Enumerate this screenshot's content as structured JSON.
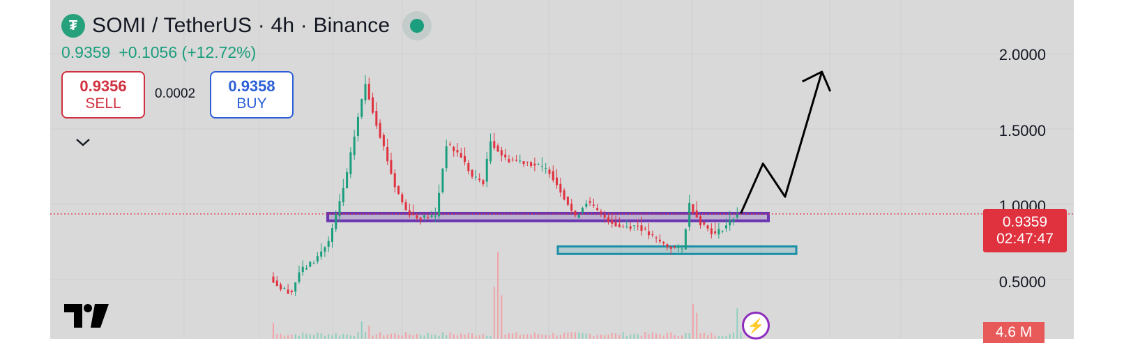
{
  "header": {
    "logo_glyph": "₮",
    "title": "SOMI / TetherUS · 4h · Binance",
    "last_price": "0.9359",
    "change": "+0.1056 (+12.72%)",
    "status_color": "#1a9e7d"
  },
  "trade": {
    "sell_price": "0.9356",
    "sell_label": "SELL",
    "spread": "0.0002",
    "buy_price": "0.9358",
    "buy_label": "BUY"
  },
  "price_tag": {
    "price": "0.9359",
    "countdown": "02:47:47"
  },
  "volume_tag": "4.6 M",
  "colors": {
    "up": "#1a9e7d",
    "down": "#e0313f",
    "resistance_zone": "#6a35b0",
    "support_zone": "#1b8fa6",
    "arrow": "#000000"
  },
  "chart_data": {
    "type": "candlestick",
    "y_ticks": [
      "2.0000",
      "1.5000",
      "1.0000",
      "0.5000"
    ],
    "y_tick_values": [
      2.0,
      1.5,
      1.0,
      0.5
    ],
    "current_price": 0.9359,
    "resistance_zone": {
      "low": 0.89,
      "high": 0.94
    },
    "support_zone": {
      "low": 0.67,
      "high": 0.72
    },
    "price_path": [
      {
        "i": 0,
        "p": 0.52
      },
      {
        "i": 3,
        "p": 0.44
      },
      {
        "i": 6,
        "p": 0.42
      },
      {
        "i": 8,
        "p": 0.55
      },
      {
        "i": 12,
        "p": 0.62
      },
      {
        "i": 16,
        "p": 0.75
      },
      {
        "i": 18,
        "p": 0.92
      },
      {
        "i": 21,
        "p": 1.2
      },
      {
        "i": 24,
        "p": 1.58
      },
      {
        "i": 26,
        "p": 1.8
      },
      {
        "i": 28,
        "p": 1.62
      },
      {
        "i": 31,
        "p": 1.38
      },
      {
        "i": 34,
        "p": 1.12
      },
      {
        "i": 37,
        "p": 0.96
      },
      {
        "i": 40,
        "p": 0.91
      },
      {
        "i": 45,
        "p": 0.92
      },
      {
        "i": 48,
        "p": 1.4
      },
      {
        "i": 52,
        "p": 1.32
      },
      {
        "i": 55,
        "p": 1.18
      },
      {
        "i": 58,
        "p": 1.15
      },
      {
        "i": 60,
        "p": 1.42
      },
      {
        "i": 64,
        "p": 1.3
      },
      {
        "i": 70,
        "p": 1.28
      },
      {
        "i": 76,
        "p": 1.22
      },
      {
        "i": 80,
        "p": 1.05
      },
      {
        "i": 83,
        "p": 0.91
      },
      {
        "i": 86,
        "p": 1.02
      },
      {
        "i": 90,
        "p": 0.93
      },
      {
        "i": 95,
        "p": 0.85
      },
      {
        "i": 100,
        "p": 0.86
      },
      {
        "i": 104,
        "p": 0.78
      },
      {
        "i": 108,
        "p": 0.72
      },
      {
        "i": 112,
        "p": 0.7
      },
      {
        "i": 114,
        "p": 1.0
      },
      {
        "i": 117,
        "p": 0.88
      },
      {
        "i": 121,
        "p": 0.8
      },
      {
        "i": 124,
        "p": 0.86
      },
      {
        "i": 127,
        "p": 0.94
      }
    ],
    "volume_spikes": [
      {
        "i": 0,
        "v": 0.18
      },
      {
        "i": 24,
        "v": 0.2
      },
      {
        "i": 26,
        "v": 0.15
      },
      {
        "i": 60,
        "v": 0.6
      },
      {
        "i": 61,
        "v": 1.0
      },
      {
        "i": 62,
        "v": 0.5
      },
      {
        "i": 114,
        "v": 0.4
      },
      {
        "i": 115,
        "v": 0.3
      },
      {
        "i": 126,
        "v": 0.35
      }
    ],
    "projection_path": [
      {
        "i": 127,
        "p": 0.94
      },
      {
        "i": 133,
        "p": 1.27
      },
      {
        "i": 139,
        "p": 1.05
      },
      {
        "i": 149,
        "p": 1.88
      }
    ]
  }
}
